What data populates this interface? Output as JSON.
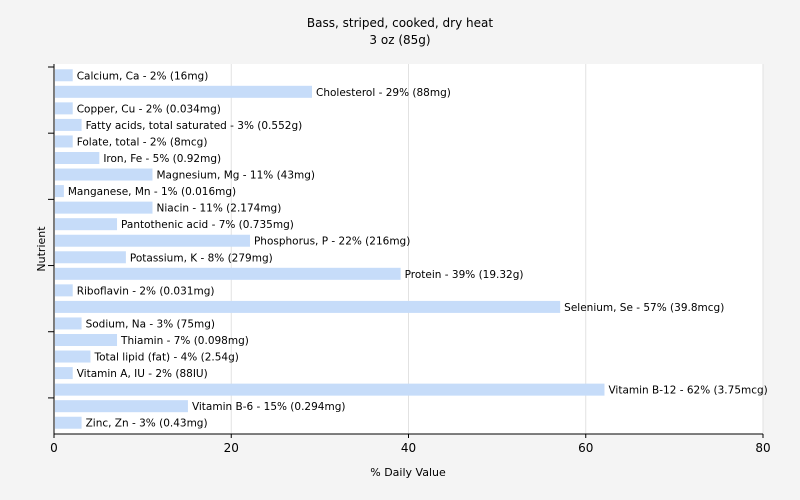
{
  "chart_data": {
    "type": "bar",
    "orientation": "horizontal",
    "title": "Bass, striped, cooked, dry heat",
    "subtitle": "3 oz (85g)",
    "xlabel": "% Daily Value",
    "ylabel": "Nutrient",
    "xlim": [
      0,
      80
    ],
    "xticks": [
      0,
      20,
      40,
      60,
      80
    ],
    "grid": true,
    "bar_color": "#c6dcf9",
    "categories": [
      "Calcium, Ca",
      "Cholesterol",
      "Copper, Cu",
      "Fatty acids, total saturated",
      "Folate, total",
      "Iron, Fe",
      "Magnesium, Mg",
      "Manganese, Mn",
      "Niacin",
      "Pantothenic acid",
      "Phosphorus, P",
      "Potassium, K",
      "Protein",
      "Riboflavin",
      "Selenium, Se",
      "Sodium, Na",
      "Thiamin",
      "Total lipid (fat)",
      "Vitamin A, IU",
      "Vitamin B-12",
      "Vitamin B-6",
      "Zinc, Zn"
    ],
    "values": [
      2,
      29,
      2,
      3,
      2,
      5,
      11,
      1,
      11,
      7,
      22,
      8,
      39,
      2,
      57,
      3,
      7,
      4,
      2,
      62,
      15,
      3
    ],
    "labels": [
      "Calcium, Ca - 2% (16mg)",
      "Cholesterol - 29% (88mg)",
      "Copper, Cu - 2% (0.034mg)",
      "Fatty acids, total saturated - 3% (0.552g)",
      "Folate, total - 2% (8mcg)",
      "Iron, Fe - 5% (0.92mg)",
      "Magnesium, Mg - 11% (43mg)",
      "Manganese, Mn - 1% (0.016mg)",
      "Niacin - 11% (2.174mg)",
      "Pantothenic acid - 7% (0.735mg)",
      "Phosphorus, P - 22% (216mg)",
      "Potassium, K - 8% (279mg)",
      "Protein - 39% (19.32g)",
      "Riboflavin - 2% (0.031mg)",
      "Selenium, Se - 57% (39.8mcg)",
      "Sodium, Na - 3% (75mg)",
      "Thiamin - 7% (0.098mg)",
      "Total lipid (fat) - 4% (2.54g)",
      "Vitamin A, IU - 2% (88IU)",
      "Vitamin B-12 - 62% (3.75mcg)",
      "Vitamin B-6 - 15% (0.294mg)",
      "Zinc, Zn - 3% (0.43mg)"
    ]
  }
}
